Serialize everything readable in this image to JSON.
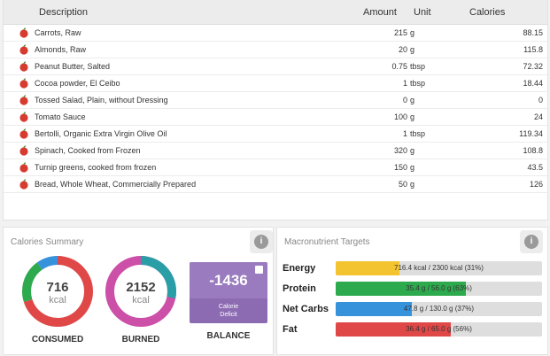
{
  "table": {
    "headers": {
      "description": "Description",
      "amount": "Amount",
      "unit": "Unit",
      "calories": "Calories"
    },
    "rows": [
      {
        "description": "Carrots, Raw",
        "amount": "215",
        "unit": "g",
        "calories": "88.15"
      },
      {
        "description": "Almonds, Raw",
        "amount": "20",
        "unit": "g",
        "calories": "115.8"
      },
      {
        "description": "Peanut Butter, Salted",
        "amount": "0.75",
        "unit": "tbsp",
        "calories": "72.32"
      },
      {
        "description": "Cocoa powder, El Ceibo",
        "amount": "1",
        "unit": "tbsp",
        "calories": "18.44"
      },
      {
        "description": "Tossed Salad, Plain, without Dressing",
        "amount": "0",
        "unit": "g",
        "calories": "0"
      },
      {
        "description": "Tomato Sauce",
        "amount": "100",
        "unit": "g",
        "calories": "24"
      },
      {
        "description": "Bertolli, Organic Extra Virgin Olive Oil",
        "amount": "1",
        "unit": "tbsp",
        "calories": "119.34"
      },
      {
        "description": "Spinach, Cooked from Frozen",
        "amount": "320",
        "unit": "g",
        "calories": "108.8"
      },
      {
        "description": "Turnip greens, cooked from frozen",
        "amount": "150",
        "unit": "g",
        "calories": "43.5"
      },
      {
        "description": "Bread, Whole Wheat, Commercially Prepared",
        "amount": "50",
        "unit": "g",
        "calories": "126"
      }
    ]
  },
  "summary": {
    "title": "Calories Summary",
    "info_icon": "i",
    "consumed": {
      "value": "716",
      "unit": "kcal",
      "caption": "CONSUMED"
    },
    "burned": {
      "value": "2152",
      "unit": "kcal",
      "caption": "BURNED"
    },
    "balance": {
      "value": "-1436",
      "label_line1": "Calorie",
      "label_line2": "Deficit",
      "caption": "BALANCE"
    }
  },
  "macros": {
    "title": "Macronutrient Targets",
    "info_icon": "i",
    "rows": [
      {
        "label": "Energy",
        "text": "716.4 kcal / 2300 kcal (31%)",
        "fraction": 0.31,
        "color": "#f4c430"
      },
      {
        "label": "Protein",
        "text": "35.4 g / 56.0 g (63%)",
        "fraction": 0.63,
        "color": "#2eaa4e"
      },
      {
        "label": "Net Carbs",
        "text": "47.8 g / 130.0 g (37%)",
        "fraction": 0.37,
        "color": "#3792dc"
      },
      {
        "label": "Fat",
        "text": "36.4 g / 65.0 g (56%)",
        "fraction": 0.56,
        "color": "#e04848"
      }
    ]
  },
  "colors": {
    "consumed_ring": [
      "#e04848",
      "#2eaa4e",
      "#3792dc"
    ],
    "burned_ring": [
      "#cc4fa8",
      "#2a9ea6"
    ],
    "balance_bg": "#9a7bbf"
  },
  "icons": {
    "food_icon": "apple-icon"
  }
}
